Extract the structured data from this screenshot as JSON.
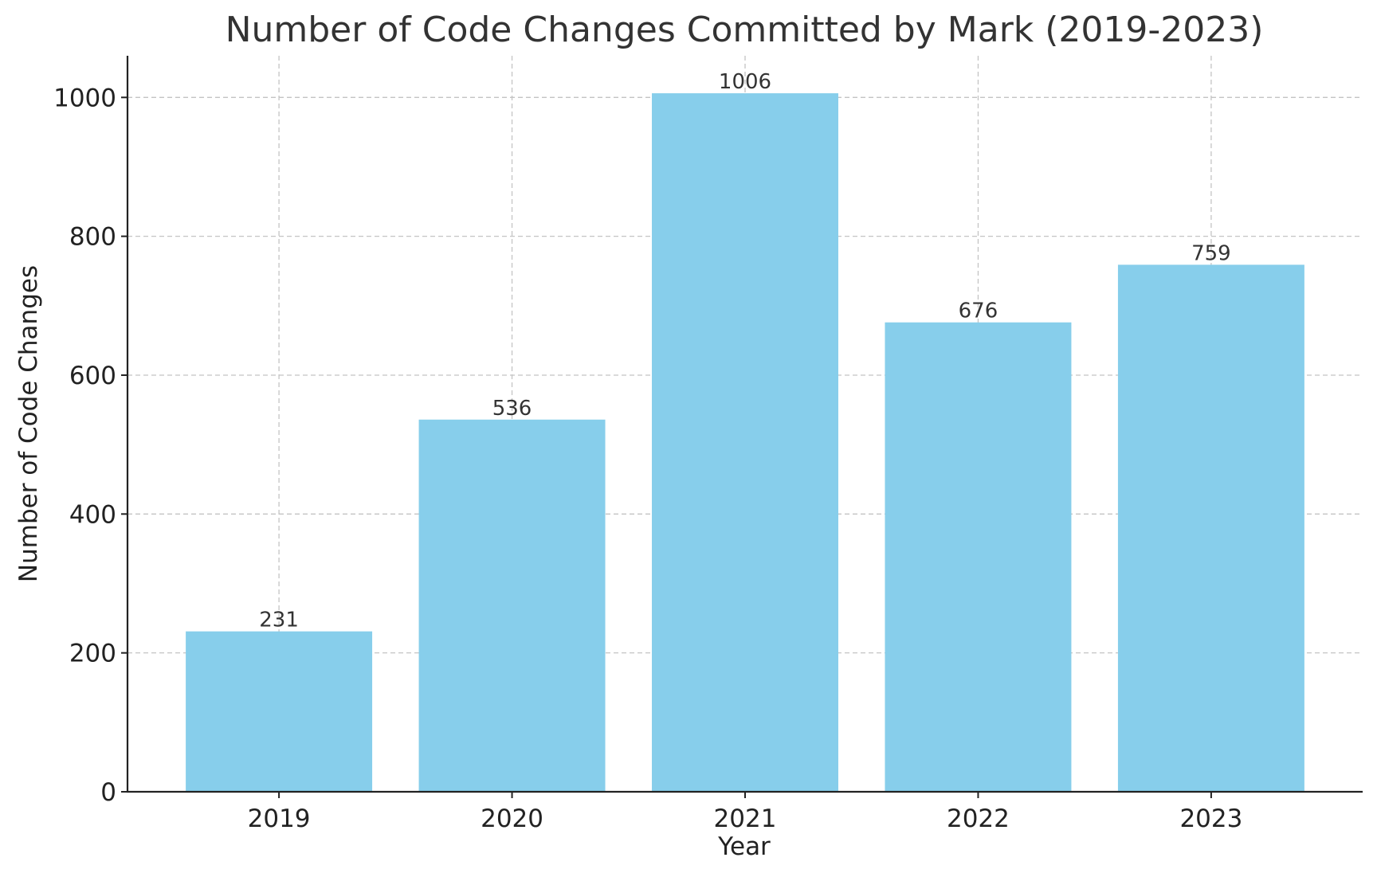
{
  "chart_data": {
    "type": "bar",
    "title": "Number of Code Changes Committed by Mark (2019-2023)",
    "xlabel": "Year",
    "ylabel": "Number of Code Changes",
    "categories": [
      "2019",
      "2020",
      "2021",
      "2022",
      "2023"
    ],
    "values": [
      231,
      536,
      1006,
      676,
      759
    ],
    "ylim": [
      0,
      1060
    ],
    "yticks": [
      0,
      200,
      400,
      600,
      800,
      1000
    ],
    "bar_color": "#87CEEB",
    "grid": true,
    "data_labels": true
  }
}
